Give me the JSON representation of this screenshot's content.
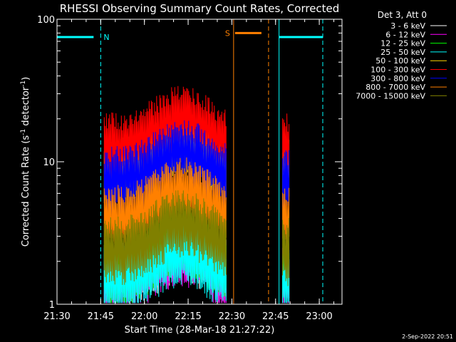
{
  "chart_data": {
    "type": "line",
    "title": "RHESSI Observing Summary Count Rates, Corrected",
    "xlabel": "Start Time (28-Mar-18 21:27:22)",
    "ylabel_main": "Corrected Count Rate (s",
    "ylabel_sup1": "-1",
    "ylabel_mid": " detector",
    "ylabel_sup2": "-1",
    "ylabel_end": ")",
    "y_scale": "log",
    "ylim": [
      1,
      100
    ],
    "xlim_minutes": [
      21.5,
      23.13
    ],
    "x_ticks": [
      {
        "label": "21:30",
        "t": 21.5
      },
      {
        "label": "21:45",
        "t": 21.75
      },
      {
        "label": "22:00",
        "t": 22.0
      },
      {
        "label": "22:15",
        "t": 22.25
      },
      {
        "label": "22:30",
        "t": 22.5
      },
      {
        "label": "22:45",
        "t": 22.75
      },
      {
        "label": "23:00",
        "t": 23.0
      }
    ],
    "y_ticks": [
      {
        "label": "1",
        "v": 1
      },
      {
        "label": "10",
        "v": 10
      },
      {
        "label": "100",
        "v": 100
      }
    ],
    "legend_header": "Det 3, Att 0",
    "series": [
      {
        "name": "3 - 6 keV",
        "color": "#ffffff",
        "level": 1.6
      },
      {
        "name": "6 - 12 keV",
        "color": "#ff00ff",
        "level": 1.5
      },
      {
        "name": "12 - 25 keV",
        "color": "#00ff00",
        "level": 1.7
      },
      {
        "name": "25 - 50 keV",
        "color": "#00ffff",
        "level": 1.5
      },
      {
        "name": "50 - 100 keV",
        "color": "#ffd700",
        "level": 8.5
      },
      {
        "name": "100 - 300 keV",
        "color": "#ff0000",
        "level": 13
      },
      {
        "name": "300 - 800 keV",
        "color": "#0000ff",
        "level": 7.5
      },
      {
        "name": "800 - 7000 keV",
        "color": "#ff8000",
        "level": 4.0
      },
      {
        "name": "7000 - 15000 keV",
        "color": "#808000",
        "level": 2.4
      }
    ],
    "segments": [
      {
        "start": 21.77,
        "end": 22.47
      },
      {
        "start": 22.79,
        "end": 22.83
      }
    ],
    "annotations": [
      {
        "label": "N",
        "color": "#00ffff",
        "region": [
          21.5,
          21.75
        ],
        "level": 75
      },
      {
        "label": "S",
        "color": "#ff8000",
        "region": [
          22.51,
          22.71
        ],
        "level": 80
      },
      {
        "label": "",
        "color": "#00ffff",
        "region": [
          22.77,
          23.02
        ],
        "level": 75
      }
    ],
    "footer_date": "2-Sep-2022 20:51"
  }
}
